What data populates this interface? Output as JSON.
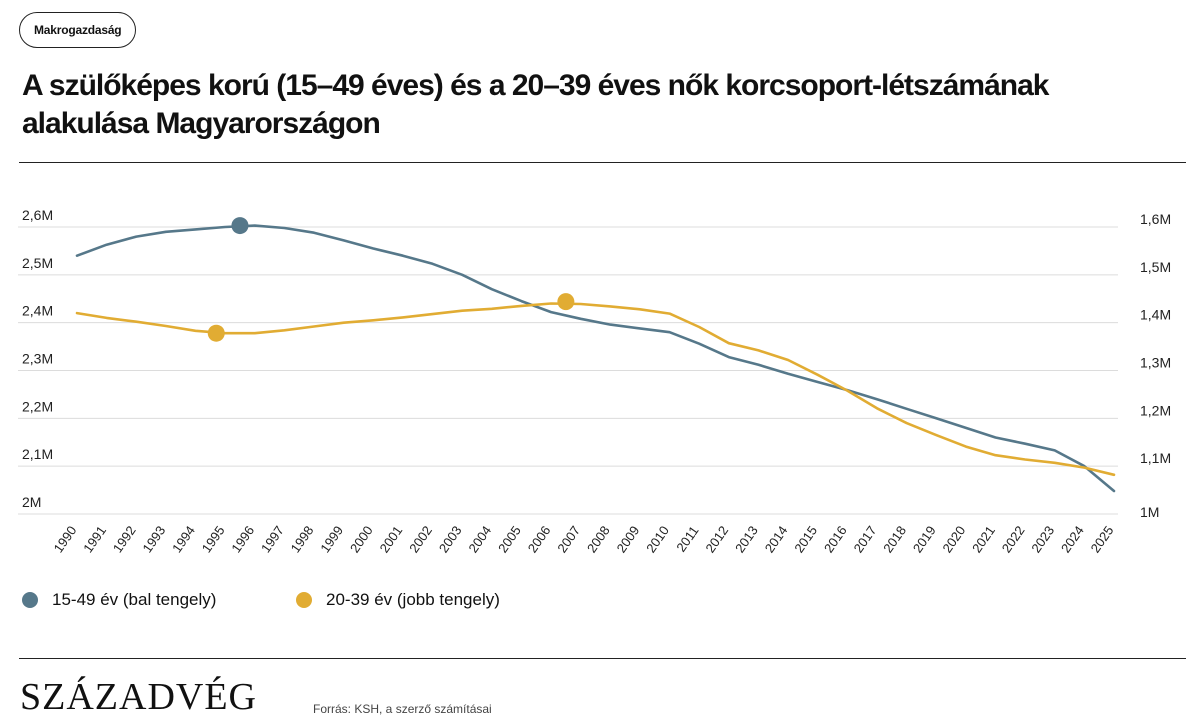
{
  "category_tag": "Makrogazdaság",
  "title": "A szülőképes korú (15–49 éves) és a 20–39 éves nők korcsoport-létszámának alakulása Magyarországon",
  "logo": "SZÁZADVÉG",
  "source": "Forrás: KSH, a szerző számításai",
  "colors": {
    "series_15_49": "#56788a",
    "series_20_39": "#e1ac33",
    "grid": "#dcdcdc",
    "text": "#111111"
  },
  "chart_data": {
    "type": "line",
    "title": "A szülőképes korú (15–49 éves) és a 20–39 éves nők korcsoport-létszámának alakulása Magyarországon",
    "x": [
      "1990",
      "1991",
      "1992",
      "1993",
      "1994",
      "1995",
      "1996",
      "1997",
      "1998",
      "1999",
      "2000",
      "2001",
      "2002",
      "2003",
      "2004",
      "2005",
      "2006",
      "2007",
      "2008",
      "2009",
      "2010",
      "2011",
      "2012",
      "2013",
      "2014",
      "2015",
      "2016",
      "2017",
      "2018",
      "2019",
      "2020",
      "2021",
      "2022",
      "2023",
      "2024",
      "2025"
    ],
    "left_axis": {
      "ticks": [
        2000000,
        2100000,
        2200000,
        2300000,
        2400000,
        2500000,
        2600000
      ],
      "tick_labels": [
        "2M",
        "2,1M",
        "2,2M",
        "2,3M",
        "2,4M",
        "2,5M",
        "2,6M"
      ],
      "ylim": [
        2000000,
        2600000
      ]
    },
    "right_axis": {
      "ticks": [
        1000000,
        1100000,
        1200000,
        1300000,
        1400000,
        1500000,
        1600000
      ],
      "tick_labels": [
        "1M",
        "1,1M",
        "1,2M",
        "1,3M",
        "1,4M",
        "1,5M",
        "1,6M"
      ],
      "ylim": [
        1000000,
        1600000
      ]
    },
    "grid": true,
    "legend_position": "bottom-left",
    "series": [
      {
        "name": "15-49 év (bal tengely)",
        "axis": "left",
        "color": "#56788a",
        "highlight_index": 5.5,
        "highlight_value": 2603000,
        "values": [
          2540000,
          2563000,
          2580000,
          2590000,
          2595000,
          2600000,
          2603000,
          2598000,
          2588000,
          2572000,
          2555000,
          2540000,
          2523000,
          2500000,
          2470000,
          2445000,
          2422000,
          2408000,
          2396000,
          2388000,
          2380000,
          2356000,
          2328000,
          2312000,
          2293000,
          2276000,
          2259000,
          2240000,
          2220000,
          2200000,
          2180000,
          2160000,
          2147000,
          2133000,
          2100000,
          2048000
        ]
      },
      {
        "name": "20-39 év (jobb tengely)",
        "axis": "right",
        "color": "#e1ac33",
        "highlight_points": [
          {
            "index": 4.7,
            "value": 1378000
          },
          {
            "index": 16.5,
            "value": 1444000
          }
        ],
        "values": [
          1420000,
          1410000,
          1402000,
          1393000,
          1383000,
          1378000,
          1378000,
          1384000,
          1392000,
          1400000,
          1405000,
          1411000,
          1418000,
          1425000,
          1429000,
          1435000,
          1440000,
          1439000,
          1434000,
          1428000,
          1419000,
          1391000,
          1357000,
          1342000,
          1322000,
          1291000,
          1258000,
          1221000,
          1190000,
          1165000,
          1141000,
          1123000,
          1114000,
          1107000,
          1097000,
          1082000
        ]
      }
    ]
  }
}
